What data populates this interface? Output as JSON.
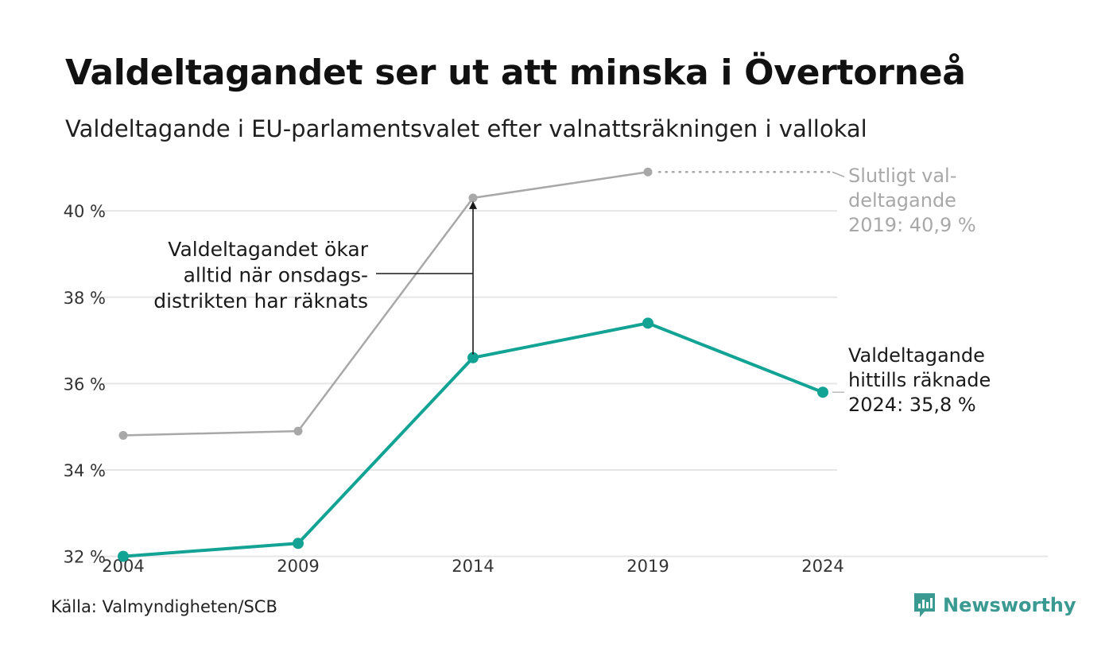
{
  "title": "Valdeltagandet ser ut att minska i Övertorneå",
  "subtitle": "Valdeltagande i EU-parlamentsvalet efter valnattsräkningen i vallokal",
  "source": "Källa: Valmyndigheten/SCB",
  "brand": "Newsworthy",
  "colors": {
    "counted": "#12a394",
    "final": "#a8a8a8",
    "grid": "#e6e6e6",
    "text": "#1a1a1a",
    "brand": "#3a9a92"
  },
  "chart_data": {
    "type": "line",
    "x": [
      2004,
      2009,
      2014,
      2019,
      2024
    ],
    "x_tick_labels": [
      "2004",
      "2009",
      "2014",
      "2019",
      "2024"
    ],
    "ylim": [
      31.9,
      41.2
    ],
    "y_ticks": [
      32,
      34,
      36,
      38,
      40
    ],
    "y_tick_labels": [
      "32 %",
      "34 %",
      "36 %",
      "38 %",
      "40 %"
    ],
    "grid": true,
    "series": [
      {
        "id": "final",
        "values": [
          34.8,
          34.9,
          40.3,
          40.9,
          null
        ]
      },
      {
        "id": "counted",
        "values": [
          32.0,
          32.3,
          36.6,
          37.4,
          35.8
        ]
      }
    ],
    "annotations": {
      "increase": {
        "lines": [
          "Valdeltagandet ökar",
          "alltid när onsdags-",
          "distrikten har räknats"
        ],
        "arrow_x": 2014,
        "arrow_from": 36.6,
        "arrow_to": 40.3
      },
      "final_2019": {
        "lines": [
          "Slutligt val-",
          "deltagande",
          "2019: 40,9 %"
        ]
      },
      "counted_2024": {
        "lines": [
          "Valdeltagande",
          "hittills räknade",
          "2024: 35,8 %"
        ]
      }
    }
  }
}
